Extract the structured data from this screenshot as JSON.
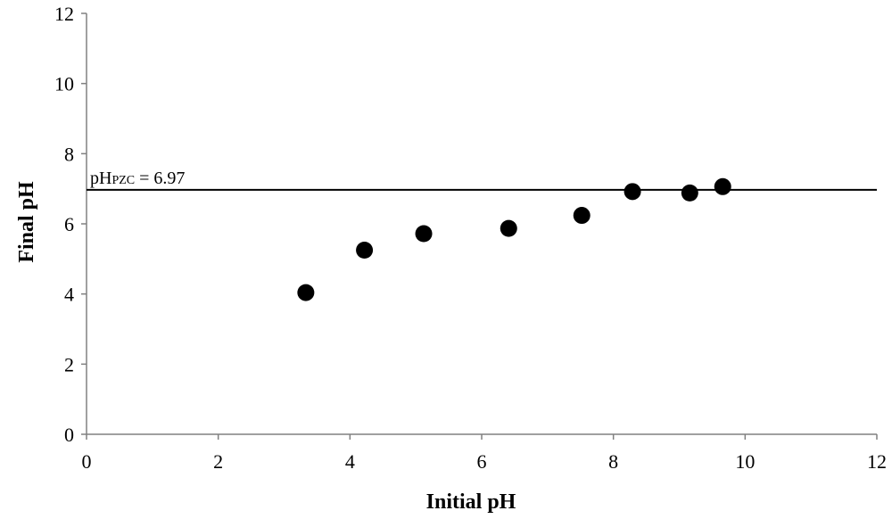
{
  "chart_data": {
    "type": "scatter",
    "title": "",
    "xlabel": "Initial pH",
    "ylabel": "Final pH",
    "xlim": [
      0,
      12
    ],
    "ylim": [
      0,
      12
    ],
    "x_ticks": [
      "0",
      "2",
      "4",
      "6",
      "8",
      "10",
      "12"
    ],
    "y_ticks": [
      "0",
      "2",
      "4",
      "6",
      "8",
      "10",
      "12"
    ],
    "grid": false,
    "series": [
      {
        "x": [
          3.33,
          4.22,
          5.12,
          6.41,
          7.52,
          8.29,
          9.16,
          9.66
        ],
        "y": [
          4.04,
          5.25,
          5.72,
          5.87,
          6.24,
          6.92,
          6.88,
          7.06
        ],
        "color": "#000000",
        "marker": "circle"
      }
    ],
    "reference_line": {
      "y": 6.97,
      "label_main": "pH",
      "label_sub": "PZC",
      "label_rest": " = 6.97"
    }
  }
}
